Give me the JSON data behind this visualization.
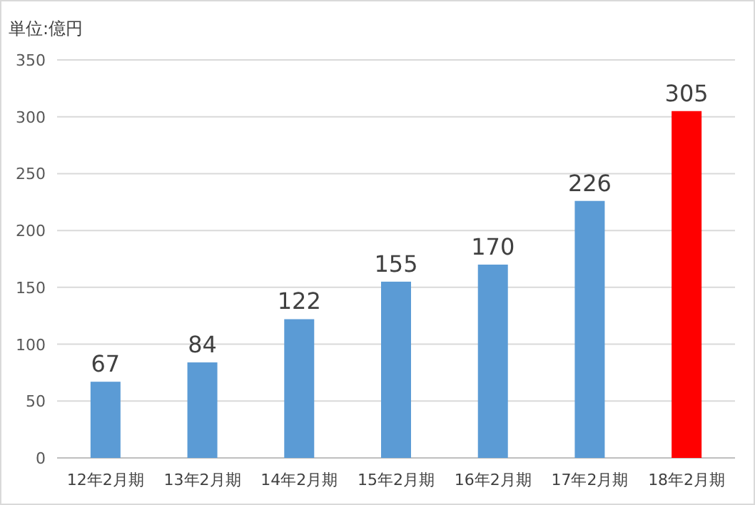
{
  "chart_data": {
    "type": "bar",
    "annotations": [
      "単位:億円"
    ],
    "categories": [
      "12年2月期",
      "13年2月期",
      "14年2月期",
      "15年2月期",
      "16年2月期",
      "17年2月期",
      "18年2月期"
    ],
    "values": [
      67,
      84,
      122,
      155,
      170,
      226,
      305
    ],
    "colors": [
      "#5b9bd5",
      "#5b9bd5",
      "#5b9bd5",
      "#5b9bd5",
      "#5b9bd5",
      "#5b9bd5",
      "#ff0000"
    ],
    "ylim": [
      0,
      350
    ],
    "yticks": [
      0,
      50,
      100,
      150,
      200,
      250,
      300,
      350
    ],
    "grid": "y",
    "data_labels": true
  }
}
